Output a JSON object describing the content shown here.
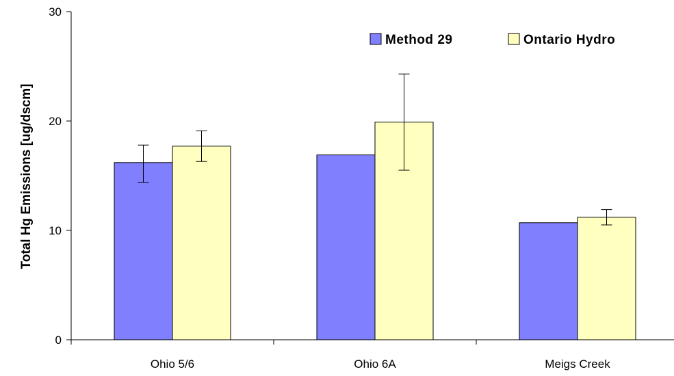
{
  "chart_data": {
    "type": "bar",
    "title": "",
    "xlabel": "",
    "ylabel": "Total Hg Emissions  [ug/dscm]",
    "ylim": [
      0,
      30
    ],
    "yticks": [
      0,
      10,
      20,
      30
    ],
    "grid": false,
    "legend_position": "top-right",
    "categories": [
      "Ohio 5/6",
      "Ohio 6A",
      "Meigs Creek"
    ],
    "series": [
      {
        "name": "Method 29",
        "color": "#8080ff",
        "values": [
          16.2,
          16.9,
          10.7
        ],
        "error_low": [
          14.4,
          null,
          null
        ],
        "error_high": [
          17.8,
          null,
          null
        ]
      },
      {
        "name": "Ontario Hydro",
        "color": "#ffffc0",
        "values": [
          17.7,
          19.9,
          11.2
        ],
        "error_low": [
          16.3,
          15.5,
          10.5
        ],
        "error_high": [
          19.1,
          24.3,
          11.9
        ]
      }
    ]
  }
}
